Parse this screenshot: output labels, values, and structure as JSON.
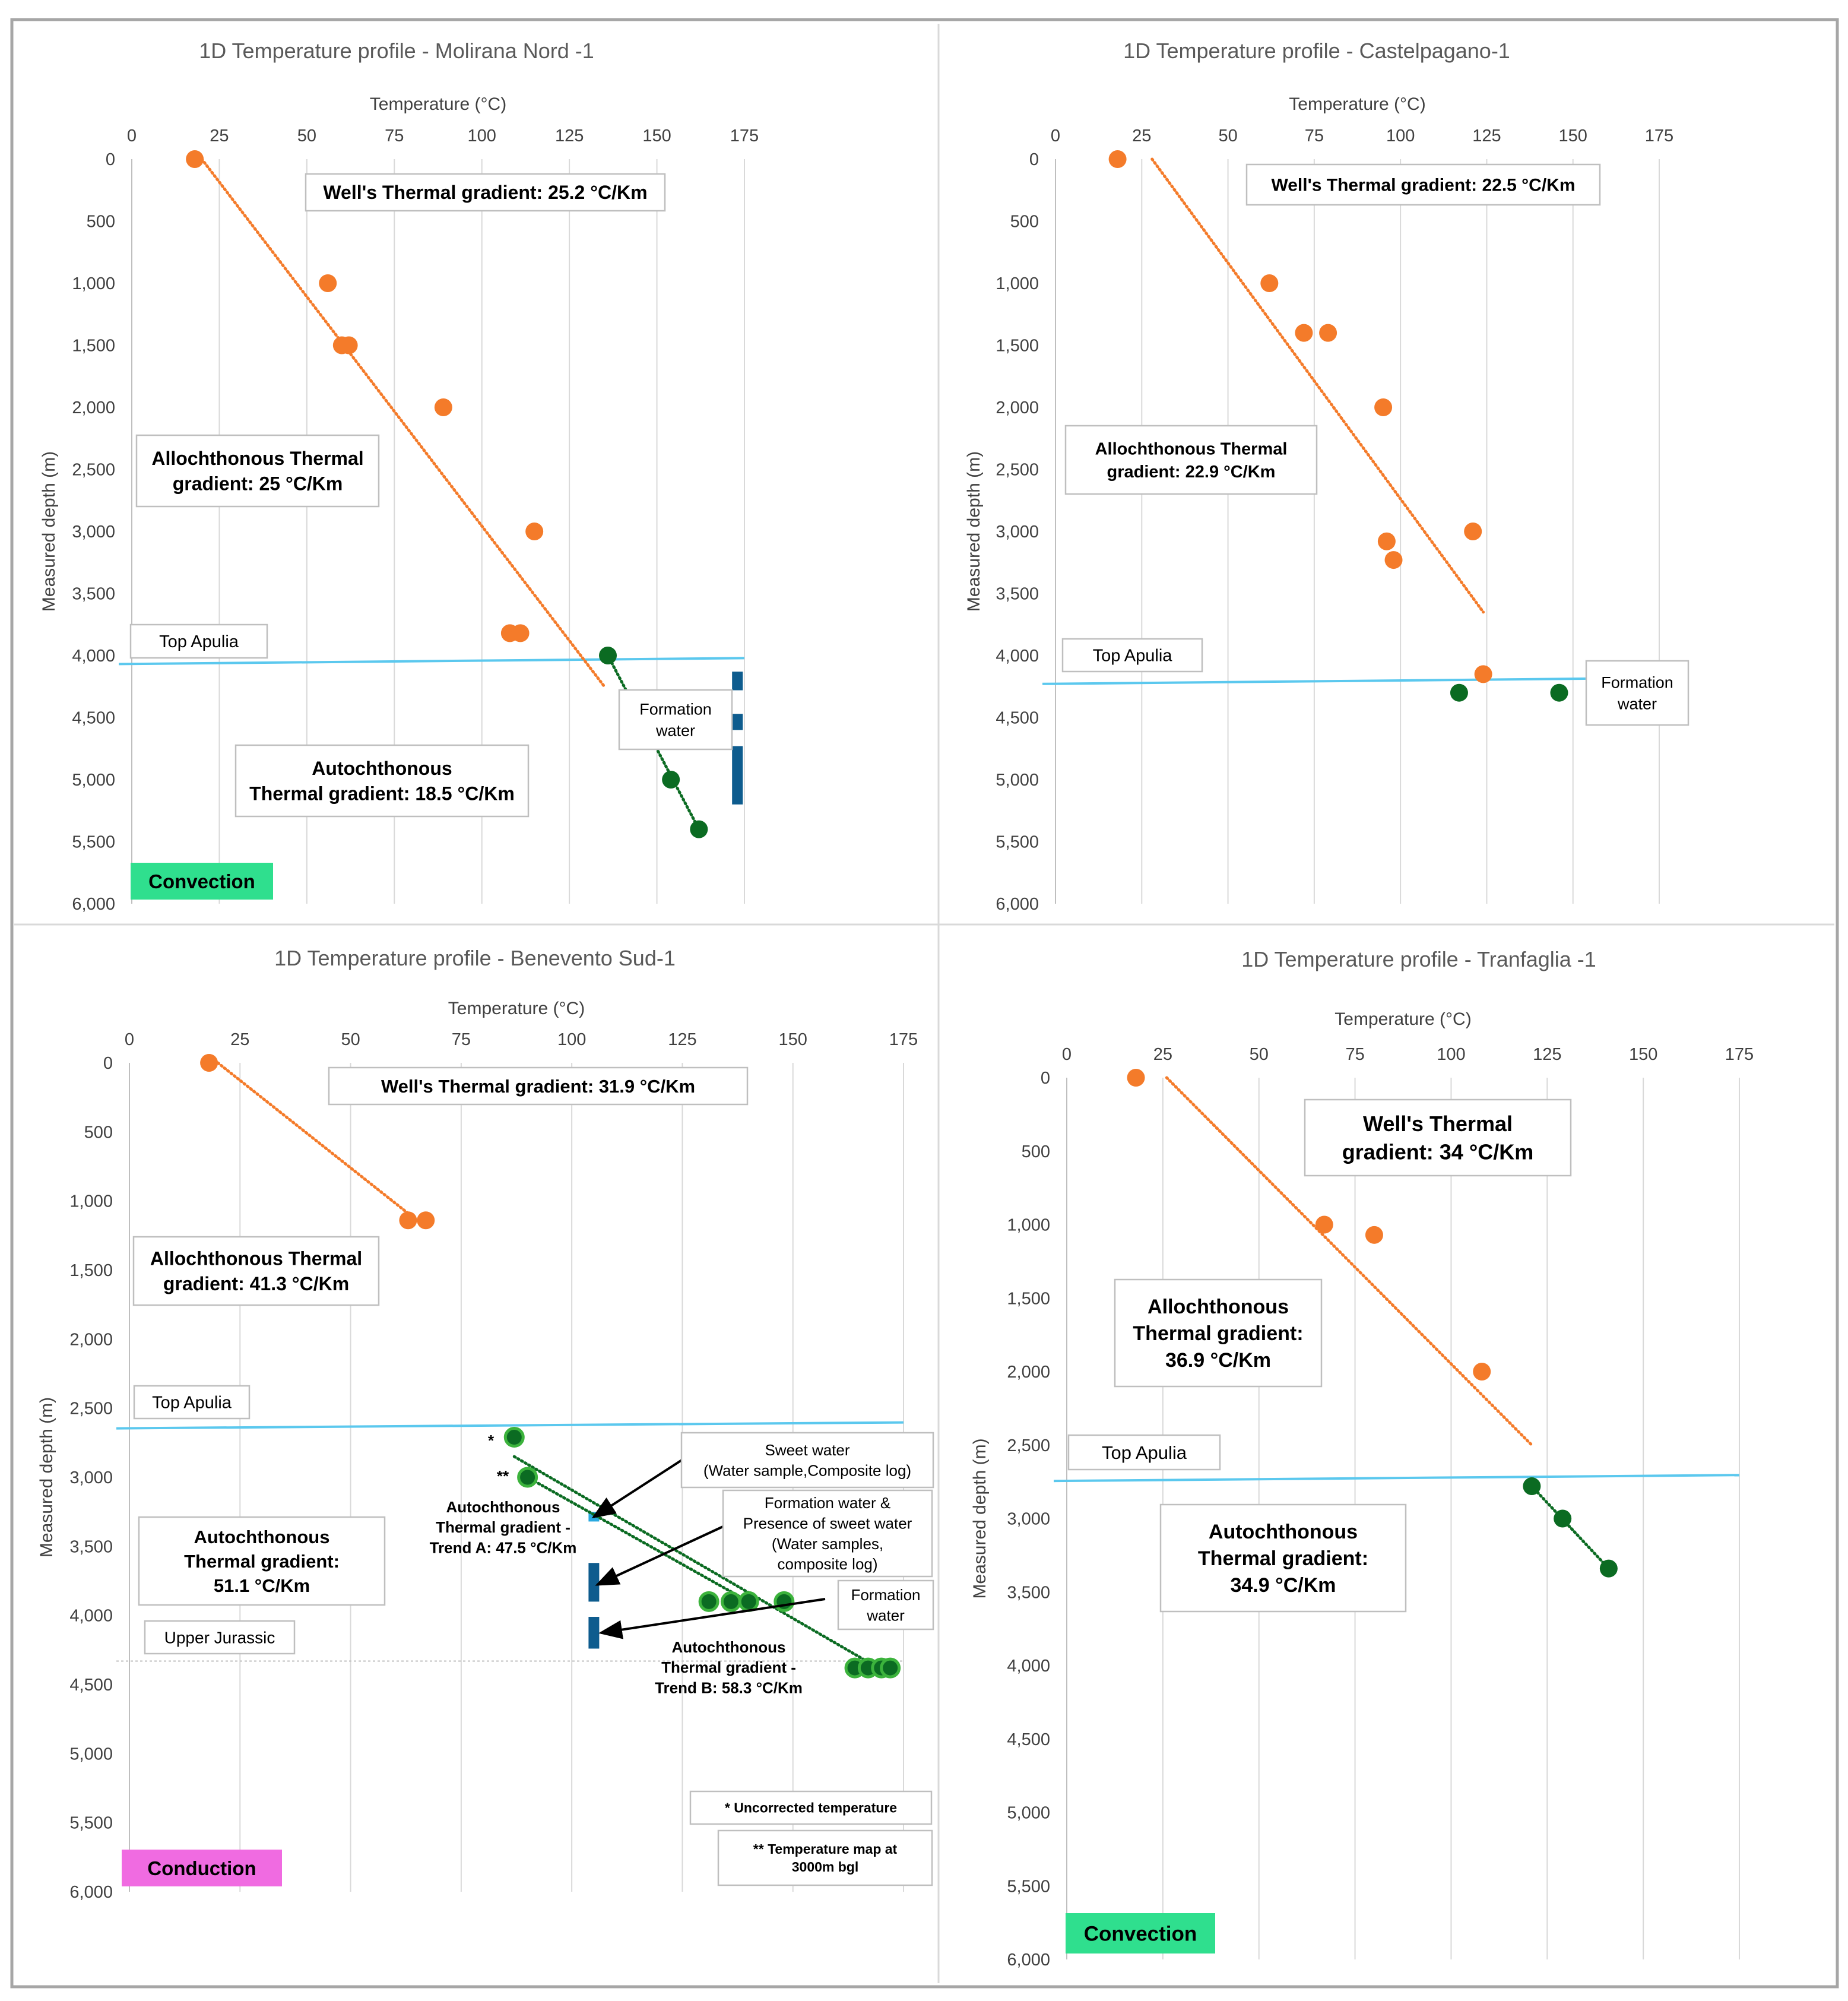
{
  "colors": {
    "orange": "#f47b2a",
    "green": "#0b6b22",
    "greenLight": "#3cb33c",
    "apulia": "#5bc8ee",
    "jurassic": "#bfbfbf",
    "bar": "#0e5c8e",
    "barLight": "#29a9e0",
    "convection": "#2fdf8e",
    "conduction": "#f06be1"
  },
  "common": {
    "x_axis_title": "Temperature (°C)",
    "y_axis_title": "Measured depth (m)",
    "x_ticks": [
      "0",
      "25",
      "50",
      "75",
      "100",
      "125",
      "150",
      "175"
    ],
    "y_ticks": [
      "0",
      "500",
      "1,000",
      "1,500",
      "2,000",
      "2,500",
      "3,000",
      "3,500",
      "4,000",
      "4,500",
      "5,000",
      "5,500",
      "6,000"
    ]
  },
  "chart_data": [
    {
      "type": "scatter",
      "title": "1D Temperature profile - Molirana Nord -1",
      "xlabel": "Temperature (°C)",
      "ylabel": "Measured depth (m)",
      "xlim": [
        0,
        175
      ],
      "ylim": [
        0,
        6000
      ],
      "y_inverted": true,
      "series": [
        {
          "name": "Allochthonous",
          "color": "orange",
          "points": [
            [
              18,
              0
            ],
            [
              56,
              1000
            ],
            [
              60,
              1500
            ],
            [
              62,
              1500
            ],
            [
              89,
              2000
            ],
            [
              115,
              3000
            ],
            [
              108,
              3820
            ],
            [
              111,
              3820
            ]
          ]
        },
        {
          "name": "Autochthonous",
          "color": "green",
          "points": [
            [
              136,
              4000
            ],
            [
              154,
              5000
            ],
            [
              162,
              5400
            ]
          ]
        }
      ],
      "trend_lines": [
        {
          "color": "orange",
          "from": [
            20,
            0
          ],
          "to": [
            135,
            4250
          ]
        },
        {
          "color": "green",
          "from": [
            136,
            4000
          ],
          "to": [
            162,
            5400
          ]
        }
      ],
      "horizontal_lines": [
        {
          "label": "Top Apulia",
          "depth": 4040,
          "color": "apulia"
        }
      ],
      "bars": [
        {
          "x": 173,
          "from": 4130,
          "to": 4280,
          "color": "bar"
        },
        {
          "x": 173,
          "from": 4470,
          "to": 4600,
          "color": "bar"
        },
        {
          "x": 173,
          "from": 4730,
          "to": 5200,
          "color": "bar"
        }
      ],
      "annotations": [
        {
          "id": "wells",
          "lines": [
            "Well's Thermal gradient: 25.2 °C/Km"
          ]
        },
        {
          "id": "allo",
          "lines": [
            "Allochthonous Thermal",
            "gradient: 25 °C/Km"
          ]
        },
        {
          "id": "auto",
          "lines": [
            "Autochthonous",
            "Thermal gradient: 18.5 °C/Km"
          ]
        },
        {
          "id": "apulia",
          "lines": [
            "Top Apulia"
          ]
        },
        {
          "id": "formation",
          "lines": [
            "Formation",
            "water"
          ]
        }
      ],
      "mode": "Convection",
      "mode_color": "convection"
    },
    {
      "type": "scatter",
      "title": "1D Temperature profile - Castelpagano-1",
      "xlabel": "Temperature (°C)",
      "ylabel": "Measured depth (m)",
      "xlim": [
        0,
        175
      ],
      "ylim": [
        0,
        6000
      ],
      "y_inverted": true,
      "series": [
        {
          "name": "Allochthonous",
          "color": "orange",
          "points": [
            [
              18,
              0
            ],
            [
              62,
              1000
            ],
            [
              72,
              1400
            ],
            [
              79,
              1400
            ],
            [
              95,
              2000
            ],
            [
              96,
              3080
            ],
            [
              98,
              3230
            ],
            [
              121,
              3000
            ],
            [
              124,
              4150
            ]
          ]
        },
        {
          "name": "Autochthonous",
          "color": "green",
          "points": [
            [
              117,
              4300
            ],
            [
              146,
              4300
            ]
          ]
        }
      ],
      "trend_lines": [
        {
          "color": "orange",
          "from": [
            28,
            0
          ],
          "to": [
            124,
            3650
          ]
        }
      ],
      "horizontal_lines": [
        {
          "label": "Top Apulia",
          "depth": 4200,
          "color": "apulia"
        }
      ],
      "bars": [],
      "annotations": [
        {
          "id": "wells",
          "lines": [
            "Well's Thermal gradient: 22.5 °C/Km"
          ]
        },
        {
          "id": "allo",
          "lines": [
            "Allochthonous Thermal",
            "gradient: 22.9 °C/Km"
          ]
        },
        {
          "id": "apulia",
          "lines": [
            "Top Apulia"
          ]
        },
        {
          "id": "formation",
          "lines": [
            "Formation",
            "water"
          ]
        }
      ]
    },
    {
      "type": "scatter",
      "title": "1D Temperature profile - Benevento Sud-1",
      "xlabel": "Temperature (°C)",
      "ylabel": "Measured depth (m)",
      "xlim": [
        0,
        175
      ],
      "ylim": [
        0,
        6000
      ],
      "y_inverted": true,
      "series": [
        {
          "name": "Allochthonous",
          "color": "orange",
          "points": [
            [
              18,
              0
            ],
            [
              63,
              1140
            ],
            [
              67,
              1140
            ]
          ]
        },
        {
          "name": "Autochthonous",
          "color": "green",
          "points": [
            [
              87,
              2710
            ],
            [
              90,
              3000
            ],
            [
              131,
              3900
            ],
            [
              136,
              3900
            ],
            [
              140,
              3900
            ],
            [
              148,
              3900
            ],
            [
              164,
              4380
            ],
            [
              167,
              4380
            ],
            [
              170,
              4380
            ],
            [
              172,
              4380
            ]
          ]
        }
      ],
      "trend_lines": [
        {
          "color": "orange",
          "from": [
            20,
            0
          ],
          "to": [
            65,
            1140
          ]
        },
        {
          "color": "green",
          "from": [
            87,
            2850
          ],
          "to": [
            172,
            4430
          ]
        },
        {
          "color": "green",
          "from": [
            90,
            3000
          ],
          "to": [
            140,
            3900
          ]
        }
      ],
      "horizontal_lines": [
        {
          "label": "Top Apulia",
          "depth": 2620,
          "color": "apulia"
        },
        {
          "label": "Upper Jurassic",
          "depth": 4330,
          "color": "jurassic"
        }
      ],
      "bars": [
        {
          "x": 105,
          "from": 3250,
          "to": 3320,
          "color": "barLight"
        },
        {
          "x": 105,
          "from": 3620,
          "to": 3900,
          "color": "bar"
        },
        {
          "x": 105,
          "from": 4010,
          "to": 4240,
          "color": "bar"
        }
      ],
      "annotations": [
        {
          "id": "wells",
          "lines": [
            "Well's Thermal gradient: 31.9 °C/Km"
          ]
        },
        {
          "id": "allo",
          "lines": [
            "Allochthonous Thermal",
            "gradient:  41.3 °C/Km"
          ]
        },
        {
          "id": "auto",
          "lines": [
            "Autochthonous",
            "Thermal gradient:",
            "51.1 °C/Km"
          ]
        },
        {
          "id": "apulia",
          "lines": [
            "Top Apulia"
          ]
        },
        {
          "id": "jurassic",
          "lines": [
            "Upper Jurassic"
          ]
        },
        {
          "id": "trendA",
          "lines": [
            "Autochthonous",
            "Thermal gradient -",
            "Trend A: 47.5 °C/Km"
          ]
        },
        {
          "id": "trendB",
          "lines": [
            "Autochthonous",
            "Thermal gradient -",
            "Trend B: 58.3 °C/Km"
          ]
        },
        {
          "id": "sweet",
          "lines": [
            "Sweet water",
            "(Water sample,Composite log)"
          ]
        },
        {
          "id": "formsweet",
          "lines": [
            "Formation water &",
            "Presence of sweet water",
            "(Water samples,",
            "composite log)"
          ]
        },
        {
          "id": "formation",
          "lines": [
            "Formation",
            "water"
          ]
        },
        {
          "id": "uncorr",
          "lines": [
            "* Uncorrected temperature"
          ]
        },
        {
          "id": "tmap",
          "lines": [
            "** Temperature map at",
            "3000m bgl"
          ]
        },
        {
          "id": "star1",
          "lines": [
            "*"
          ]
        },
        {
          "id": "star2",
          "lines": [
            "**"
          ]
        }
      ],
      "mode": "Conduction",
      "mode_color": "conduction"
    },
    {
      "type": "scatter",
      "title": "1D Temperature profile - Tranfaglia -1",
      "xlabel": "Temperature (°C)",
      "ylabel": "Measured depth (m)",
      "xlim": [
        0,
        175
      ],
      "ylim": [
        0,
        6000
      ],
      "y_inverted": true,
      "series": [
        {
          "name": "Allochthonous",
          "color": "orange",
          "points": [
            [
              18,
              0
            ],
            [
              67,
              1000
            ],
            [
              80,
              1070
            ],
            [
              108,
              2000
            ]
          ]
        },
        {
          "name": "Autochthonous",
          "color": "green",
          "points": [
            [
              121,
              2780
            ],
            [
              129,
              3000
            ],
            [
              141,
              3340
            ]
          ]
        }
      ],
      "trend_lines": [
        {
          "color": "orange",
          "from": [
            26,
            0
          ],
          "to": [
            121,
            2500
          ]
        },
        {
          "color": "green",
          "from": [
            121,
            2780
          ],
          "to": [
            141,
            3340
          ]
        }
      ],
      "horizontal_lines": [
        {
          "label": "Top Apulia",
          "depth": 2720,
          "color": "apulia"
        }
      ],
      "bars": [],
      "annotations": [
        {
          "id": "wells",
          "lines": [
            "Well's Thermal",
            "gradient: 34 °C/Km"
          ]
        },
        {
          "id": "allo",
          "lines": [
            "Allochthonous",
            "Thermal gradient:",
            "36.9 °C/Km"
          ]
        },
        {
          "id": "auto",
          "lines": [
            "Autochthonous",
            "Thermal gradient:",
            "34.9 °C/Km"
          ]
        },
        {
          "id": "apulia",
          "lines": [
            "Top Apulia"
          ]
        }
      ],
      "mode": "Convection",
      "mode_color": "convection"
    }
  ]
}
